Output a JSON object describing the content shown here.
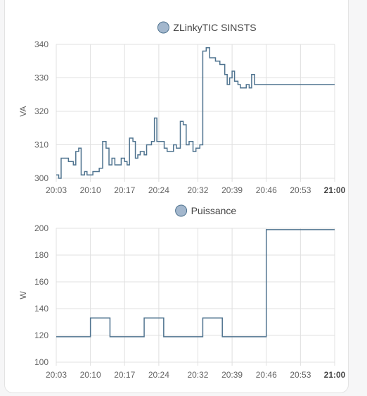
{
  "chart_data": [
    {
      "type": "line",
      "step": true,
      "title": "",
      "xlabel": "",
      "ylabel": "VA",
      "ylim": [
        300,
        340
      ],
      "yticks": [
        300,
        310,
        320,
        330,
        340
      ],
      "xlim": [
        0,
        57
      ],
      "xticks": [
        {
          "label": "20:03",
          "min": 0,
          "bold": false
        },
        {
          "label": "20:10",
          "min": 7,
          "bold": false
        },
        {
          "label": "20:17",
          "min": 14,
          "bold": false
        },
        {
          "label": "20:24",
          "min": 21,
          "bold": false
        },
        {
          "label": "20:32",
          "min": 29,
          "bold": false
        },
        {
          "label": "20:39",
          "min": 36,
          "bold": false
        },
        {
          "label": "20:46",
          "min": 43,
          "bold": false
        },
        {
          "label": "20:53",
          "min": 50,
          "bold": false
        },
        {
          "label": "21:00",
          "min": 57,
          "bold": true
        }
      ],
      "grid": true,
      "legend": "top-center",
      "series": [
        {
          "name": "ZLinkyTIC SINSTS",
          "color": "#4f738f",
          "legend_color": "#a3b7cd",
          "x": [
            0,
            0.5,
            1,
            2,
            2.5,
            3,
            3.5,
            4,
            4.6,
            5.1,
            5.8,
            6.3,
            7,
            7.5,
            8.2,
            8.8,
            9.5,
            10.2,
            10.8,
            11.4,
            12,
            12.6,
            13.3,
            14,
            14.5,
            15,
            15.7,
            16.2,
            16.7,
            17.2,
            18,
            18.5,
            19,
            19.5,
            20.1,
            20.6,
            21.2,
            22.1,
            22.7,
            23.4,
            24,
            24.6,
            25.4,
            26,
            26.6,
            27.2,
            28,
            28.6,
            29.4,
            30,
            30.7,
            31.4,
            31.9,
            32.6,
            33.5,
            34,
            34.5,
            35,
            35.5,
            36,
            36.5,
            37.2,
            37.7,
            38.3,
            38.9,
            39.5,
            40,
            40.6,
            41.1,
            41.7,
            42.2,
            42.9,
            43.4,
            44,
            44.6,
            45.2,
            45.8,
            46.4,
            47,
            47.6,
            48.2,
            48.8,
            49.4,
            50,
            50.6,
            51.2,
            51.8,
            52.4,
            53,
            53.6,
            54.2,
            54.8,
            55.4,
            56,
            56.5,
            57
          ],
          "y": [
            301,
            300,
            306,
            306,
            305,
            305,
            304,
            308,
            309,
            301,
            302,
            301,
            301,
            302,
            302,
            303,
            311,
            309,
            304,
            306,
            304,
            304,
            306,
            305,
            304,
            312,
            311,
            306,
            307,
            308,
            307,
            310,
            310,
            311,
            318,
            311,
            311,
            309,
            308,
            308,
            310,
            309,
            317,
            316,
            310,
            311,
            308,
            309,
            310,
            338,
            339,
            336,
            336,
            335,
            334,
            334,
            331,
            328,
            330,
            332,
            329,
            328,
            327,
            327,
            328,
            327,
            331,
            328,
            328,
            328,
            328,
            328,
            328,
            328,
            328,
            328,
            328,
            328,
            328,
            328,
            328,
            328,
            328,
            328,
            328,
            328,
            328,
            328,
            328,
            328,
            328,
            328,
            328,
            328,
            328,
            328
          ]
        }
      ]
    },
    {
      "type": "line",
      "step": true,
      "title": "",
      "xlabel": "",
      "ylabel": "W",
      "ylim": [
        100,
        200
      ],
      "yticks": [
        100,
        120,
        140,
        160,
        180,
        200
      ],
      "xlim": [
        0,
        57
      ],
      "xticks": [
        {
          "label": "20:03",
          "min": 0,
          "bold": false
        },
        {
          "label": "20:10",
          "min": 7,
          "bold": false
        },
        {
          "label": "20:17",
          "min": 14,
          "bold": false
        },
        {
          "label": "20:24",
          "min": 21,
          "bold": false
        },
        {
          "label": "20:32",
          "min": 29,
          "bold": false
        },
        {
          "label": "20:39",
          "min": 36,
          "bold": false
        },
        {
          "label": "20:46",
          "min": 43,
          "bold": false
        },
        {
          "label": "20:53",
          "min": 50,
          "bold": false
        },
        {
          "label": "21:00",
          "min": 57,
          "bold": true
        }
      ],
      "grid": true,
      "legend": "top-center",
      "series": [
        {
          "name": "Puissance",
          "color": "#4f738f",
          "legend_color": "#a3b7cd",
          "x": [
            0,
            7,
            11,
            18,
            22,
            30,
            34,
            38,
            43,
            57
          ],
          "y": [
            119,
            133,
            119,
            133,
            119,
            133,
            119,
            119,
            199,
            199
          ]
        }
      ]
    }
  ]
}
